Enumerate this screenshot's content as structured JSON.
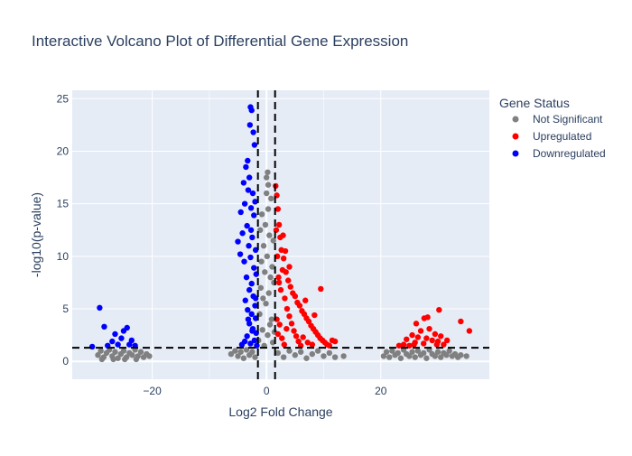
{
  "colors": {
    "plot_bg": "#e5ecf6",
    "grid": "#ffffff",
    "text": "#2a3f5f",
    "not_significant": "#808080",
    "upregulated": "#ff0000",
    "downregulated": "#0000ff",
    "threshold_line": "#000000"
  },
  "chart_data": {
    "type": "scatter",
    "title": "Interactive Volcano Plot of Differential Gene Expression",
    "xlabel": "Log2 Fold Change",
    "ylabel": "-log10(p-value)",
    "xlim": [
      -34,
      39
    ],
    "ylim": [
      -1.7,
      25.8
    ],
    "x_ticks": [
      -20,
      0,
      20
    ],
    "x_tick_labels": [
      "−20",
      "0",
      "20"
    ],
    "y_ticks": [
      0,
      5,
      10,
      15,
      20,
      25
    ],
    "y_tick_labels": [
      "0",
      "5",
      "10",
      "15",
      "20",
      "25"
    ],
    "grid": true,
    "legend_title": "Gene Status",
    "legend_position": "right",
    "thresholds": {
      "x": [
        -1.5,
        1.5
      ],
      "y": 1.3
    },
    "series": [
      {
        "name": "Not Significant",
        "color": "#808080",
        "points": [
          [
            -29.5,
            0.6
          ],
          [
            -29,
            1.0
          ],
          [
            -28.5,
            0.4
          ],
          [
            -28,
            0.8
          ],
          [
            -27.5,
            1.1
          ],
          [
            -27,
            0.5
          ],
          [
            -26.5,
            0.9
          ],
          [
            -26,
            0.3
          ],
          [
            -25.5,
            0.7
          ],
          [
            -25,
            1.0
          ],
          [
            -24.5,
            0.4
          ],
          [
            -24,
            0.8
          ],
          [
            -23.5,
            0.6
          ],
          [
            -23,
            1.1
          ],
          [
            -22.5,
            0.5
          ],
          [
            -22,
            0.9
          ],
          [
            -21.5,
            0.4
          ],
          [
            -21,
            0.7
          ],
          [
            -20.5,
            0.5
          ],
          [
            -28.8,
            0.2
          ],
          [
            -26.8,
            0.2
          ],
          [
            -24.8,
            0.2
          ],
          [
            -22.8,
            0.2
          ],
          [
            -6.2,
            0.7
          ],
          [
            -5.5,
            1.0
          ],
          [
            -5,
            0.5
          ],
          [
            -4.5,
            0.9
          ],
          [
            -4,
            0.3
          ],
          [
            -3.5,
            1.1
          ],
          [
            -3,
            0.6
          ],
          [
            -2.5,
            0.9
          ],
          [
            -2,
            0.4
          ],
          [
            -1.4,
            2.0
          ],
          [
            -1.2,
            4.5
          ],
          [
            -1.0,
            7.0
          ],
          [
            -0.9,
            9.5
          ],
          [
            -0.7,
            3.0
          ],
          [
            -0.6,
            6.0
          ],
          [
            -0.5,
            11.0
          ],
          [
            -0.4,
            1.5
          ],
          [
            -0.3,
            8.5
          ],
          [
            -0.2,
            13.0
          ],
          [
            -0.1,
            5.5
          ],
          [
            0.0,
            16.0
          ],
          [
            0.1,
            10.0
          ],
          [
            0.2,
            2.5
          ],
          [
            0.2,
            18.0
          ],
          [
            0.3,
            14.5
          ],
          [
            0.4,
            6.5
          ],
          [
            0.5,
            12.0
          ],
          [
            0.6,
            3.5
          ],
          [
            0.7,
            8.0
          ],
          [
            0.8,
            15.5
          ],
          [
            0.9,
            4.0
          ],
          [
            1.0,
            9.0
          ],
          [
            1.1,
            1.8
          ],
          [
            1.2,
            11.5
          ],
          [
            1.3,
            7.5
          ],
          [
            1.4,
            2.8
          ],
          [
            -1.1,
            12.5
          ],
          [
            -0.8,
            14.0
          ],
          [
            0.0,
            17.5
          ],
          [
            0.3,
            16.8
          ],
          [
            2,
            0.8
          ],
          [
            3,
            0.4
          ],
          [
            4,
            1.0
          ],
          [
            5,
            0.6
          ],
          [
            6,
            0.9
          ],
          [
            7,
            0.3
          ],
          [
            8,
            0.7
          ],
          [
            9,
            1.0
          ],
          [
            10,
            0.5
          ],
          [
            11,
            0.8
          ],
          [
            12,
            0.4
          ],
          [
            13.5,
            0.5
          ],
          [
            20.5,
            0.5
          ],
          [
            21,
            0.9
          ],
          [
            21.5,
            0.4
          ],
          [
            22,
            1.0
          ],
          [
            22.5,
            0.6
          ],
          [
            23,
            0.8
          ],
          [
            23.5,
            0.3
          ],
          [
            24,
            1.1
          ],
          [
            24.5,
            0.7
          ],
          [
            25,
            0.5
          ],
          [
            25.5,
            0.9
          ],
          [
            26,
            0.4
          ],
          [
            26.5,
            1.0
          ],
          [
            27,
            0.6
          ],
          [
            27.5,
            0.8
          ],
          [
            28,
            0.3
          ],
          [
            28.5,
            1.1
          ],
          [
            29,
            0.7
          ],
          [
            29.5,
            0.5
          ],
          [
            30,
            0.9
          ],
          [
            30.5,
            0.4
          ],
          [
            31,
            0.8
          ],
          [
            31.5,
            0.6
          ],
          [
            32,
            1.0
          ],
          [
            32.5,
            0.5
          ],
          [
            33,
            0.7
          ],
          [
            33.5,
            0.4
          ],
          [
            34,
            0.6
          ],
          [
            35,
            0.5
          ]
        ]
      },
      {
        "name": "Upregulated",
        "color": "#ff0000",
        "points": [
          [
            1.6,
            16.7
          ],
          [
            1.8,
            15.8
          ],
          [
            2.0,
            14.5
          ],
          [
            2.2,
            13.0
          ],
          [
            1.7,
            12.5
          ],
          [
            2.4,
            11.8
          ],
          [
            2.6,
            10.6
          ],
          [
            1.9,
            10.0
          ],
          [
            3.0,
            9.8
          ],
          [
            2.8,
            8.7
          ],
          [
            3.4,
            8.5
          ],
          [
            2.1,
            8.0
          ],
          [
            3.8,
            7.7
          ],
          [
            4.2,
            7.1
          ],
          [
            2.5,
            6.8
          ],
          [
            4.6,
            6.5
          ],
          [
            5.0,
            6.2
          ],
          [
            3.2,
            6.0
          ],
          [
            5.4,
            5.6
          ],
          [
            5.8,
            5.3
          ],
          [
            3.6,
            5.0
          ],
          [
            6.2,
            4.8
          ],
          [
            6.6,
            4.5
          ],
          [
            4.0,
            4.3
          ],
          [
            7.0,
            4.1
          ],
          [
            7.4,
            3.8
          ],
          [
            4.4,
            3.6
          ],
          [
            7.8,
            3.4
          ],
          [
            8.2,
            3.1
          ],
          [
            4.8,
            2.9
          ],
          [
            8.6,
            2.8
          ],
          [
            9.0,
            2.5
          ],
          [
            5.2,
            2.4
          ],
          [
            9.4,
            2.2
          ],
          [
            9.8,
            2.0
          ],
          [
            5.6,
            1.9
          ],
          [
            10.2,
            1.8
          ],
          [
            10.6,
            1.6
          ],
          [
            6.0,
            1.5
          ],
          [
            11.0,
            1.5
          ],
          [
            2.3,
            3.5
          ],
          [
            2.7,
            2.2
          ],
          [
            3.1,
            1.6
          ],
          [
            1.8,
            4.0
          ],
          [
            2.0,
            2.6
          ],
          [
            3.5,
            3.1
          ],
          [
            6.4,
            2.3
          ],
          [
            7.2,
            1.8
          ],
          [
            8.0,
            1.6
          ],
          [
            2.9,
            12.0
          ],
          [
            3.3,
            10.5
          ],
          [
            2.2,
            7.5
          ],
          [
            4.0,
            9.0
          ],
          [
            9.5,
            6.9
          ],
          [
            8.4,
            4.4
          ],
          [
            6.8,
            5.8
          ],
          [
            11.5,
            2.0
          ],
          [
            12.0,
            1.9
          ],
          [
            24.0,
            1.6
          ],
          [
            24.5,
            2.1
          ],
          [
            25.0,
            1.5
          ],
          [
            25.5,
            2.5
          ],
          [
            26.0,
            1.8
          ],
          [
            26.5,
            2.3
          ],
          [
            27.0,
            2.9
          ],
          [
            27.5,
            1.7
          ],
          [
            28.0,
            2.2
          ],
          [
            28.5,
            3.1
          ],
          [
            29.0,
            2.0
          ],
          [
            29.5,
            2.6
          ],
          [
            30.0,
            1.9
          ],
          [
            30.5,
            2.4
          ],
          [
            31.0,
            1.6
          ],
          [
            26.2,
            3.6
          ],
          [
            27.6,
            4.1
          ],
          [
            28.2,
            4.2
          ],
          [
            30.2,
            4.9
          ],
          [
            34.0,
            3.8
          ],
          [
            35.5,
            2.9
          ],
          [
            23.2,
            1.5
          ],
          [
            25.8,
            1.6
          ],
          [
            29.8,
            1.6
          ],
          [
            31.6,
            2.0
          ]
        ]
      },
      {
        "name": "Downregulated",
        "color": "#0000ff",
        "points": [
          [
            -29.2,
            5.1
          ],
          [
            -28.4,
            3.3
          ],
          [
            -27.8,
            1.5
          ],
          [
            -27.0,
            1.9
          ],
          [
            -26.5,
            2.6
          ],
          [
            -26.0,
            1.6
          ],
          [
            -25.4,
            2.2
          ],
          [
            -25.0,
            2.9
          ],
          [
            -24.4,
            3.2
          ],
          [
            -24.0,
            1.6
          ],
          [
            -23.6,
            2.0
          ],
          [
            -23.0,
            1.5
          ],
          [
            -30.5,
            1.4
          ],
          [
            -2.8,
            24.2
          ],
          [
            -2.6,
            23.9
          ],
          [
            -2.3,
            21.8
          ],
          [
            -2.1,
            20.6
          ],
          [
            -3.6,
            18.5
          ],
          [
            -3.0,
            17.5
          ],
          [
            -4.0,
            17.0
          ],
          [
            -3.2,
            16.3
          ],
          [
            -2.4,
            16.0
          ],
          [
            -3.8,
            15.0
          ],
          [
            -2.7,
            14.6
          ],
          [
            -4.5,
            14.2
          ],
          [
            -2.2,
            13.9
          ],
          [
            -3.4,
            12.9
          ],
          [
            -4.2,
            12.2
          ],
          [
            -2.5,
            11.8
          ],
          [
            -5.0,
            11.4
          ],
          [
            -3.1,
            11.0
          ],
          [
            -1.9,
            10.6
          ],
          [
            -4.6,
            10.2
          ],
          [
            -2.8,
            9.9
          ],
          [
            -3.9,
            9.5
          ],
          [
            -2.2,
            8.9
          ],
          [
            -1.8,
            8.3
          ],
          [
            -3.5,
            8.0
          ],
          [
            -2.6,
            7.4
          ],
          [
            -3.0,
            6.8
          ],
          [
            -2.3,
            6.2
          ],
          [
            -3.7,
            5.8
          ],
          [
            -2.0,
            5.3
          ],
          [
            -3.3,
            4.9
          ],
          [
            -2.6,
            4.5
          ],
          [
            -1.9,
            4.1
          ],
          [
            -3.0,
            3.6
          ],
          [
            -2.4,
            3.1
          ],
          [
            -1.8,
            2.7
          ],
          [
            -3.4,
            2.4
          ],
          [
            -2.1,
            2.0
          ],
          [
            -2.8,
            1.7
          ],
          [
            -1.7,
            1.5
          ],
          [
            -3.8,
            1.9
          ],
          [
            -4.3,
            1.6
          ],
          [
            -2.5,
            2.9
          ],
          [
            -3.2,
            4.0
          ],
          [
            -1.9,
            6.0
          ],
          [
            -2.7,
            12.5
          ],
          [
            -2.0,
            15.2
          ],
          [
            -3.3,
            19.1
          ],
          [
            -2.9,
            22.5
          ]
        ]
      }
    ]
  }
}
